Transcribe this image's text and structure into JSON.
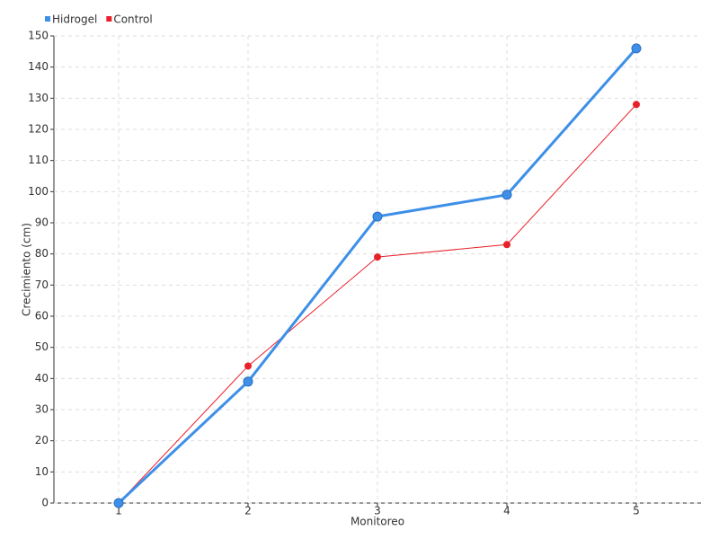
{
  "chart_data": {
    "type": "line",
    "x_label": "Monitoreo",
    "y_label": "Crecimiento (cm)",
    "x": [
      1,
      2,
      3,
      4,
      5
    ],
    "xlim": [
      0.5,
      5.5
    ],
    "xticks": [
      1,
      2,
      3,
      4,
      5
    ],
    "ylim": [
      0,
      150
    ],
    "yticks": [
      0,
      10,
      20,
      30,
      40,
      50,
      60,
      70,
      80,
      90,
      100,
      110,
      120,
      130,
      140,
      150
    ],
    "grid": true,
    "legend": "top-left",
    "series": [
      {
        "name": "Hidrogel",
        "color": "#3d8fe8",
        "values": [
          0,
          39,
          92,
          99,
          146
        ]
      },
      {
        "name": "Control",
        "color": "#e8202a",
        "values": [
          0,
          44,
          79,
          83,
          128
        ]
      }
    ]
  }
}
